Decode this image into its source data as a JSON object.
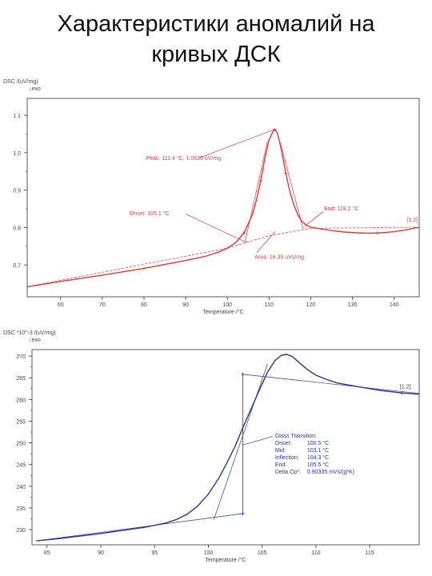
{
  "page": {
    "title_line1": "Характеристики аномалий на",
    "title_line2": "кривых ДСК"
  },
  "chart_data": [
    {
      "type": "line",
      "color": "#e23a3a",
      "ylabel": "DSC /(uV/mg)",
      "exo_label": "↓exo",
      "xlabel": "Temperature /°C",
      "xlim": [
        52,
        146
      ],
      "ylim": [
        0.615,
        1.145
      ],
      "x_ticks": [
        60,
        70,
        80,
        90,
        100,
        110,
        120,
        130,
        140
      ],
      "y_ticks": [
        0.7,
        0.8,
        0.9,
        1.0,
        1.1
      ],
      "series": [
        {
          "x": [
            52,
            60,
            70,
            80,
            90,
            95,
            98,
            100,
            102,
            104,
            106,
            107,
            108,
            109,
            110,
            111,
            111.4,
            112,
            113,
            114,
            115,
            116,
            117,
            118,
            119,
            120,
            122,
            125,
            128,
            131,
            134,
            137,
            140,
            143,
            146
          ],
          "values": [
            0.642,
            0.656,
            0.673,
            0.691,
            0.712,
            0.724,
            0.735,
            0.745,
            0.76,
            0.786,
            0.835,
            0.875,
            0.925,
            0.985,
            1.035,
            1.058,
            1.062,
            1.052,
            1.005,
            0.945,
            0.895,
            0.858,
            0.832,
            0.815,
            0.806,
            0.801,
            0.797,
            0.792,
            0.788,
            0.786,
            0.785,
            0.786,
            0.789,
            0.794,
            0.801
          ]
        }
      ],
      "baseline": {
        "x": [
          52,
          100,
          110,
          120,
          146
        ],
        "values": [
          0.642,
          0.745,
          0.778,
          0.798,
          0.801
        ]
      },
      "annotations": [
        {
          "text": "Peak: 111.4 °C, 1.0620 uV/mg"
        },
        {
          "text": "Onset: 105.1 °C"
        },
        {
          "text": "End: 119.2 °C"
        },
        {
          "text": "Area: 16.39 uVs/mg"
        },
        {
          "text": "[1.2]"
        }
      ]
    },
    {
      "type": "line",
      "color": "#2a3596",
      "ylabel": "DSC *10^-3 /(uV/mg)",
      "exo_label": "↓exo",
      "xlabel": "Temperature /°C",
      "xlim": [
        83.6,
        119.6
      ],
      "ylim": [
        226.5,
        271.5
      ],
      "x_ticks": [
        85,
        90,
        95,
        100,
        105,
        110,
        115
      ],
      "y_ticks": [
        230,
        235,
        240,
        245,
        250,
        255,
        260,
        265,
        270
      ],
      "series": [
        {
          "x": [
            84,
            86,
            88,
            90,
            92,
            94,
            96,
            97,
            98,
            99,
            100,
            101,
            101.8,
            102.5,
            103.2,
            104,
            104.8,
            105.5,
            106.2,
            106.8,
            107.3,
            107.8,
            108.4,
            109.2,
            110,
            111,
            112,
            114,
            116,
            118,
            119.6
          ],
          "values": [
            227.4,
            227.9,
            228.5,
            229.1,
            229.8,
            230.5,
            231.5,
            232.3,
            233.5,
            235.4,
            238.2,
            242.0,
            245.8,
            249.3,
            253.5,
            258.0,
            262.5,
            266.3,
            269.0,
            270.2,
            270.4,
            269.9,
            268.6,
            266.9,
            265.6,
            264.6,
            263.8,
            262.9,
            262.1,
            261.5,
            261.2
          ]
        }
      ],
      "onset_tangent": {
        "x": [
          84,
          103.2
        ],
        "values": [
          227.4,
          233.7
        ]
      },
      "end_tangent": {
        "x": [
          103.2,
          119.6
        ],
        "values": [
          265.8,
          261.4
        ]
      },
      "inflection_tangent": {
        "x": [
          100.5,
          105.5
        ],
        "values": [
          232.3,
          268.2
        ]
      },
      "step_x": 103.2,
      "annotations": [
        {
          "text": "[1.2]"
        }
      ],
      "info_box": [
        {
          "label": "Glass Transition:",
          "value": ""
        },
        {
          "label": "Onset:",
          "value": "100.5 °C"
        },
        {
          "label": "Mid:",
          "value": "103.1 °C"
        },
        {
          "label": "Inflection:",
          "value": "104.3 °C"
        },
        {
          "label": "End:",
          "value": "105.5 °C"
        },
        {
          "label": "Delta Cp*:",
          "value": "0.90335 mVs/(g*K)"
        }
      ]
    }
  ]
}
